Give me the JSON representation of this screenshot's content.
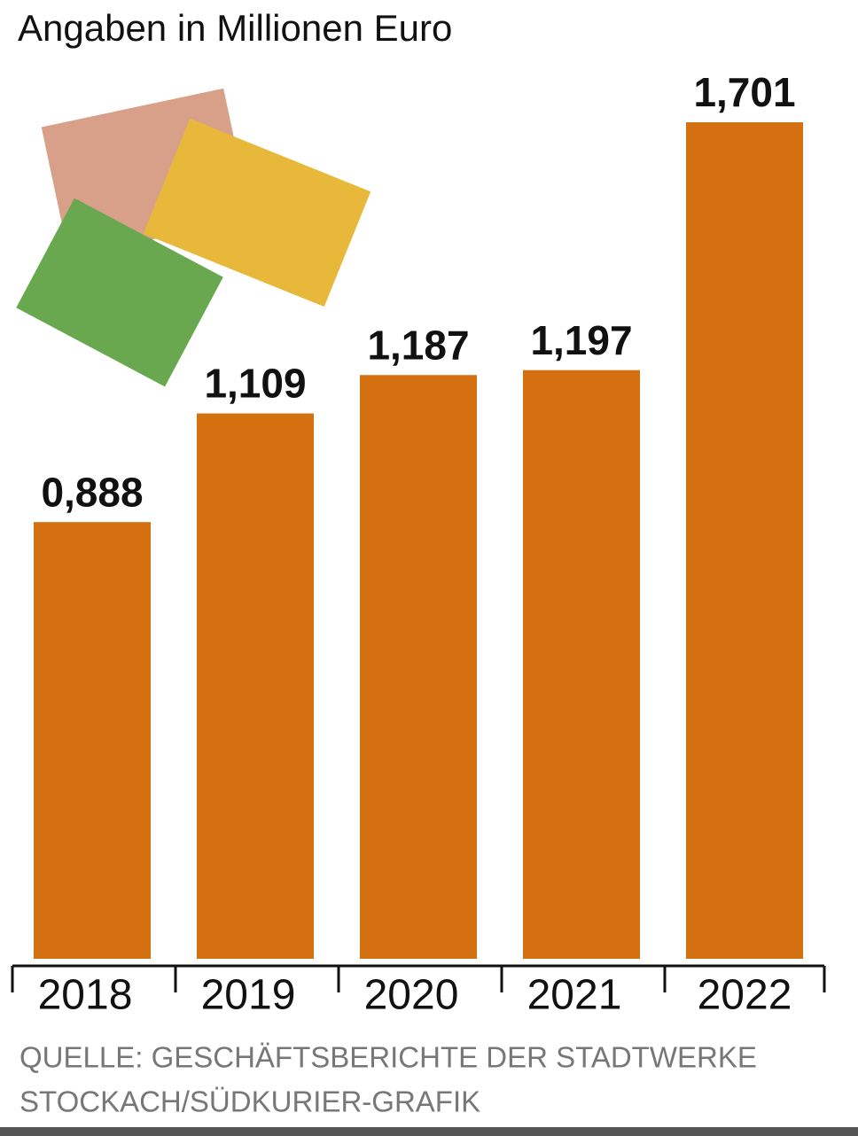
{
  "chart_data": {
    "type": "bar",
    "title": "Angaben in Millionen Euro",
    "categories": [
      "2018",
      "2019",
      "2020",
      "2021",
      "2022"
    ],
    "values": [
      0.888,
      1.109,
      1.187,
      1.197,
      1.701
    ],
    "value_labels": [
      "0,888",
      "1,109",
      "1,187",
      "1,197",
      "1,701"
    ],
    "color": "#d4700f",
    "source": [
      "QUELLE: GESCHÄFTSBERICHTE DER STADTWERKE",
      "STOCKACH/SÜDKURIER-GRAFIK"
    ]
  }
}
